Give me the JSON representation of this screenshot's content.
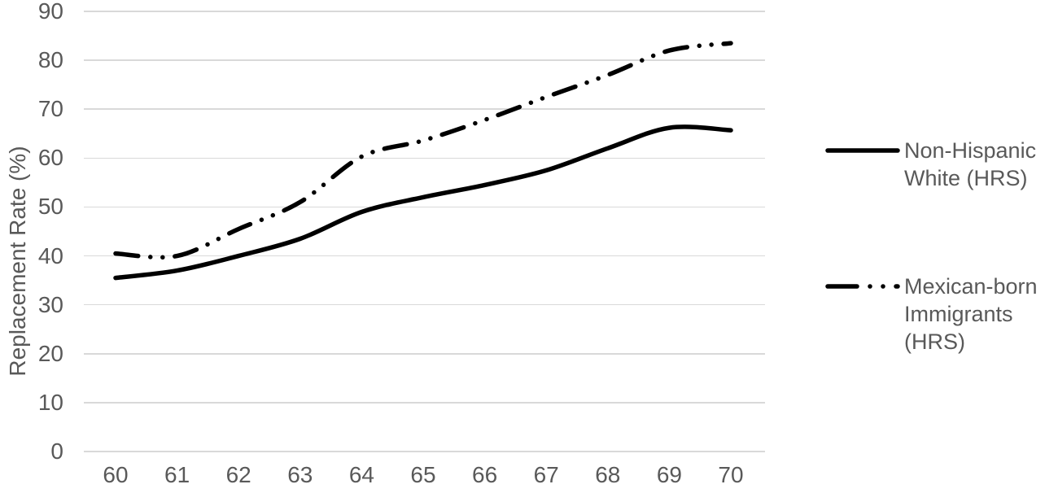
{
  "chart_data": {
    "type": "line",
    "title": "",
    "xlabel": "",
    "ylabel": "Replacement Rate (%)",
    "x": [
      60,
      61,
      62,
      63,
      64,
      65,
      66,
      67,
      68,
      69,
      70
    ],
    "xticks": [
      "60",
      "61",
      "62",
      "63",
      "64",
      "65",
      "66",
      "67",
      "68",
      "69",
      "70"
    ],
    "yticks": [
      "0",
      "10",
      "20",
      "30",
      "40",
      "50",
      "60",
      "70",
      "80",
      "90"
    ],
    "ylim": [
      0,
      90
    ],
    "xlim": [
      59.5,
      70.5
    ],
    "grid": "horizontal-only",
    "legend_position": "right",
    "series": [
      {
        "name": "Non-Hispanic White (HRS)",
        "style": "solid",
        "values": [
          35.5,
          37.0,
          40.0,
          43.5,
          49.0,
          52.0,
          54.5,
          57.5,
          62.0,
          66.2,
          65.7
        ]
      },
      {
        "name": "Mexican-born Immigrants (HRS)",
        "style": "dash-dot-dot",
        "values": [
          40.5,
          40.0,
          45.5,
          51.0,
          60.3,
          63.6,
          67.8,
          72.5,
          77.0,
          82.0,
          83.5
        ]
      }
    ],
    "colors": {
      "series_line": "#000000",
      "axis_text": "#595959",
      "gridline": "#d9d9d9",
      "background": "#ffffff"
    }
  }
}
